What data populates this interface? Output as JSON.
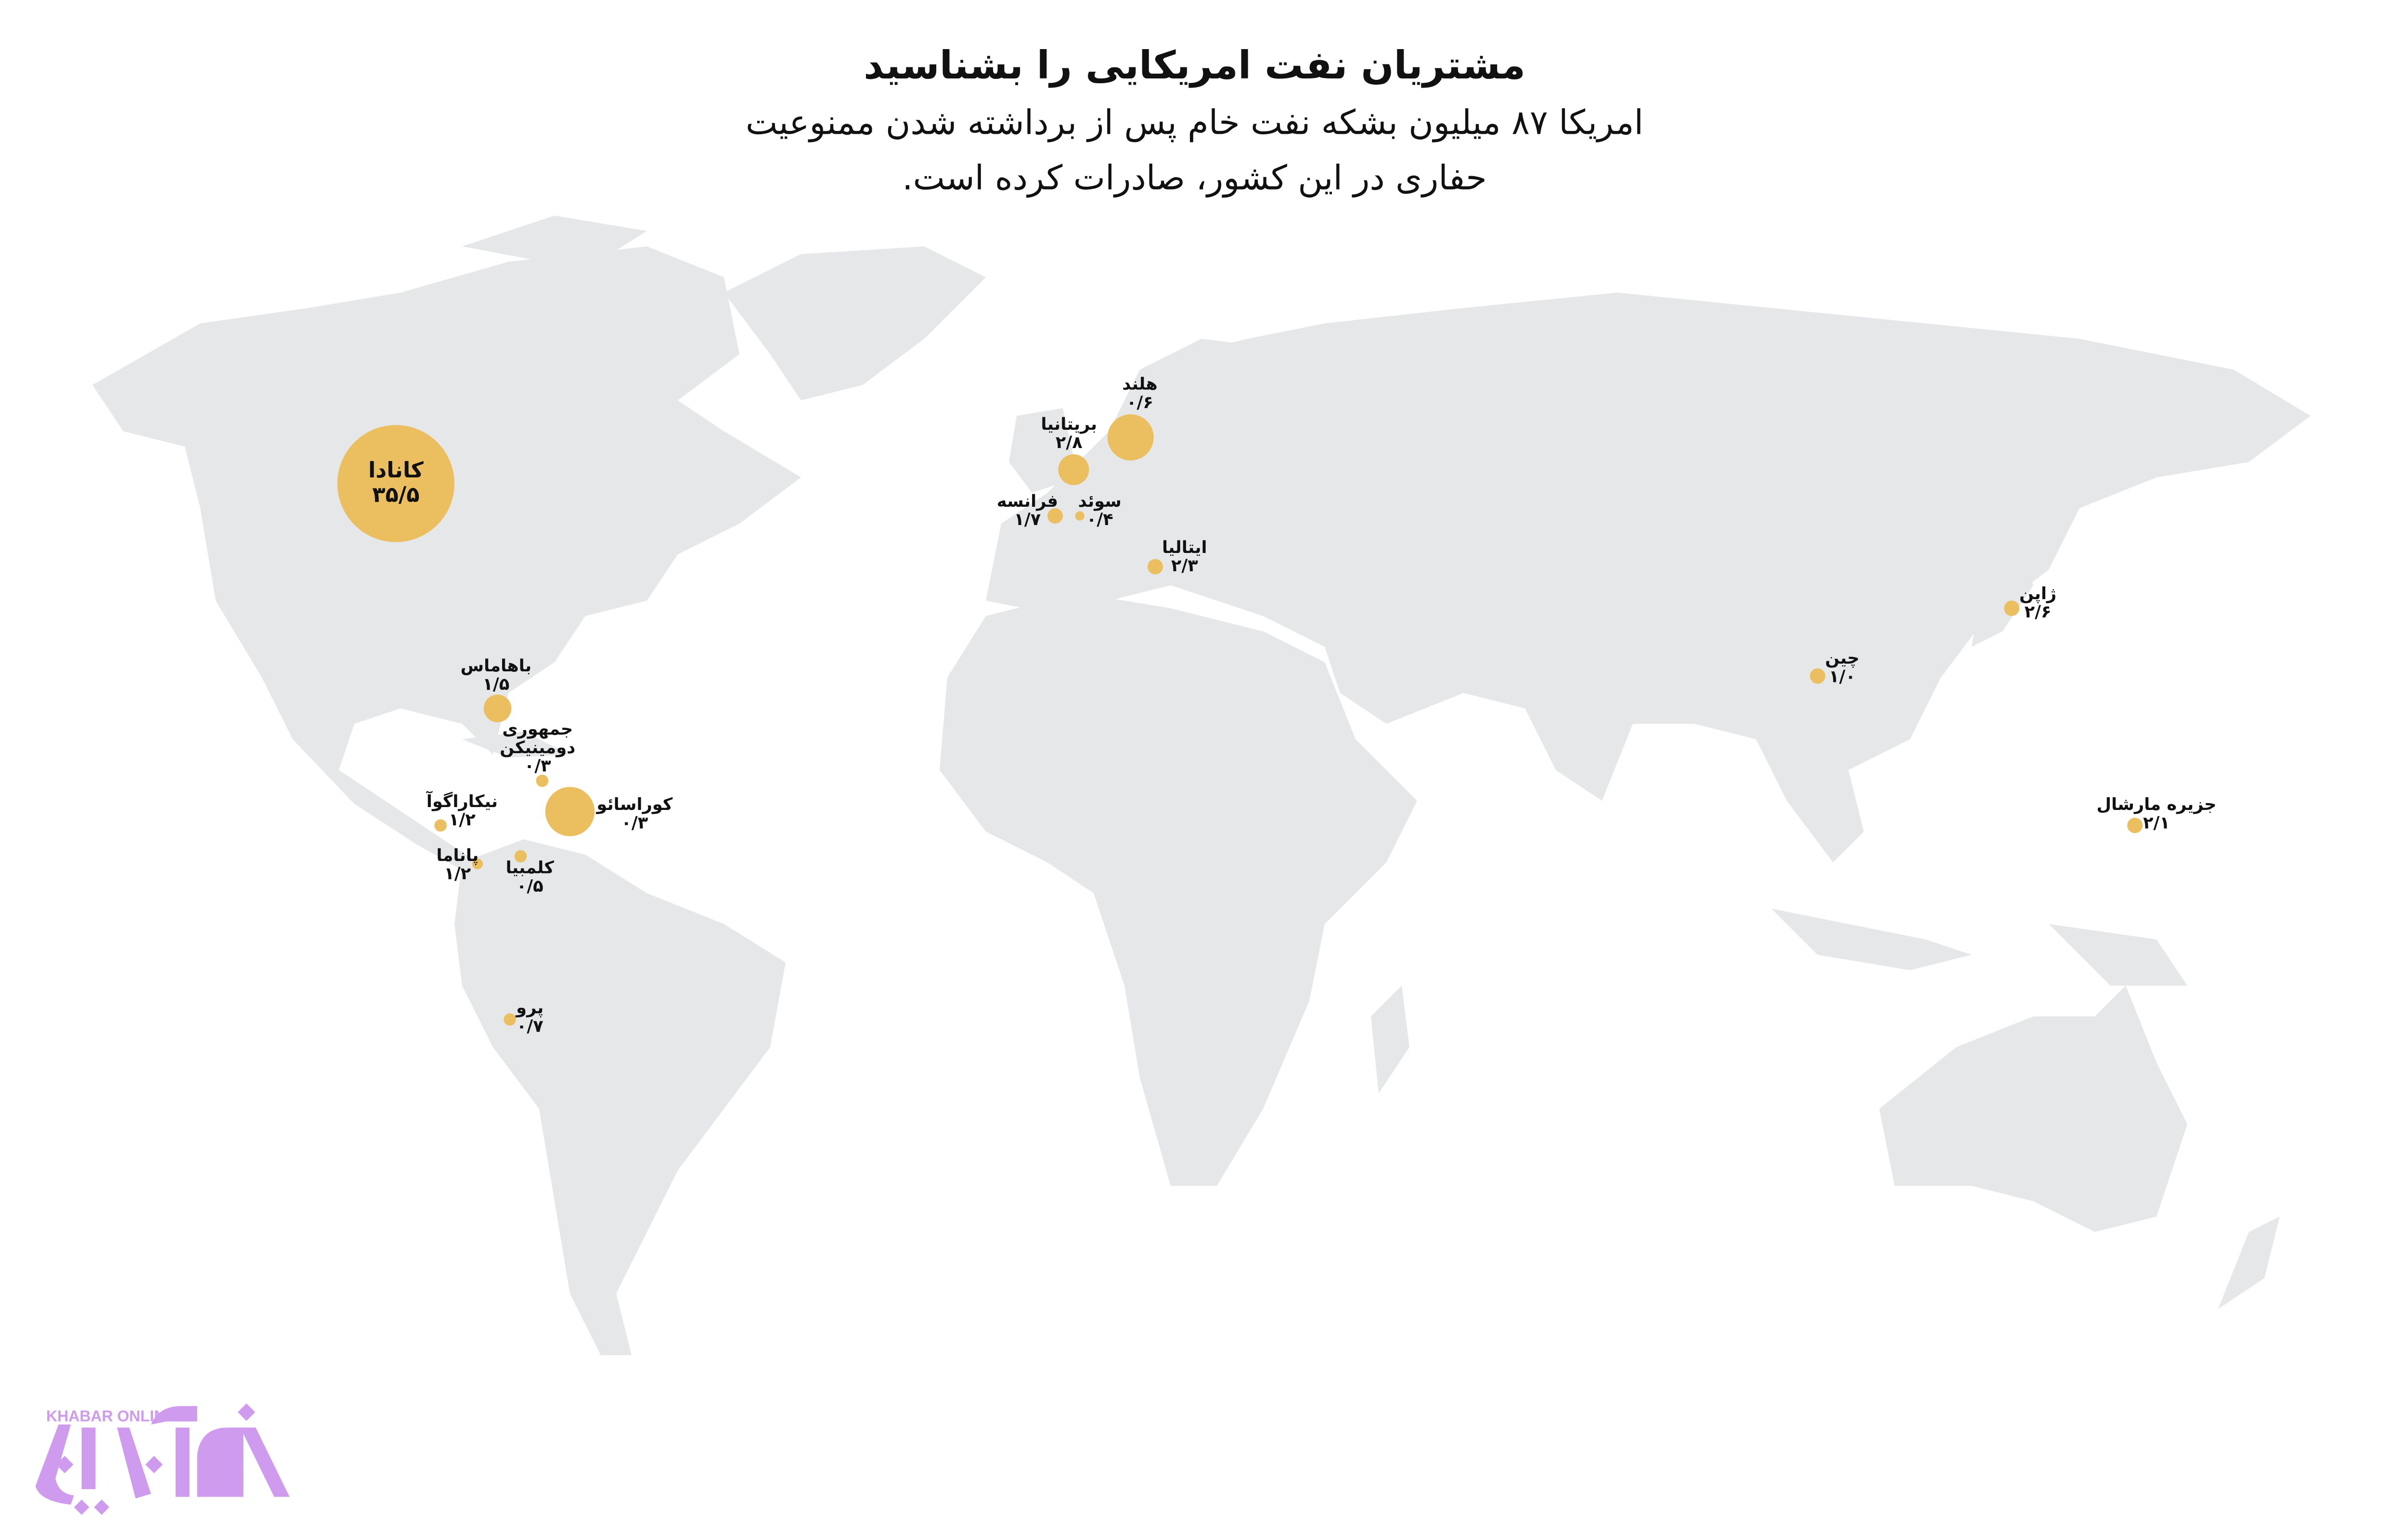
{
  "title": "مشتریان نفت امریکایی را بشناسید",
  "subtitle_line1": "امریکا ۸۷ میلیون بشکه نفت خام پس از برداشته شدن ممنوعیت",
  "subtitle_line2": "حفاری در این کشور، صادرات کرده است.",
  "colors": {
    "land": "#e6e7e8",
    "bubble": "#ebbf5f",
    "text": "#111111",
    "logo": "#cf9bee"
  },
  "countries": [
    {
      "name": "کانادا",
      "value": "۳۵/۵"
    },
    {
      "name": "باهاماس",
      "value": "۱/۵"
    },
    {
      "name": "جمهوری",
      "name2": "دومینیکن",
      "value": "۰/۳"
    },
    {
      "name": "کوراسائو",
      "value": "۰/۳"
    },
    {
      "name": "نیکاراگوآ",
      "value": "۱/۲"
    },
    {
      "name": "پاناما",
      "value": "۱/۲"
    },
    {
      "name": "کلمبیا",
      "value": "۰/۵"
    },
    {
      "name": "پرو",
      "value": "۰/۷"
    },
    {
      "name": "هلند",
      "value": "۰/۶"
    },
    {
      "name": "بریتانیا",
      "value": "۲/۸"
    },
    {
      "name": "فرانسه",
      "value": "۱/۷"
    },
    {
      "name": "سوئد",
      "value": "۰/۴"
    },
    {
      "name": "ایتالیا",
      "value": "۲/۳"
    },
    {
      "name": "چین",
      "value": "۱/۰"
    },
    {
      "name": "ژاپن",
      "value": "۲/۶"
    },
    {
      "name": "جزیره مارشال",
      "value": "۲/۱"
    }
  ],
  "logo": {
    "latin": "KHABAR ONLINE",
    "persian": "خبرآنلاین"
  }
}
